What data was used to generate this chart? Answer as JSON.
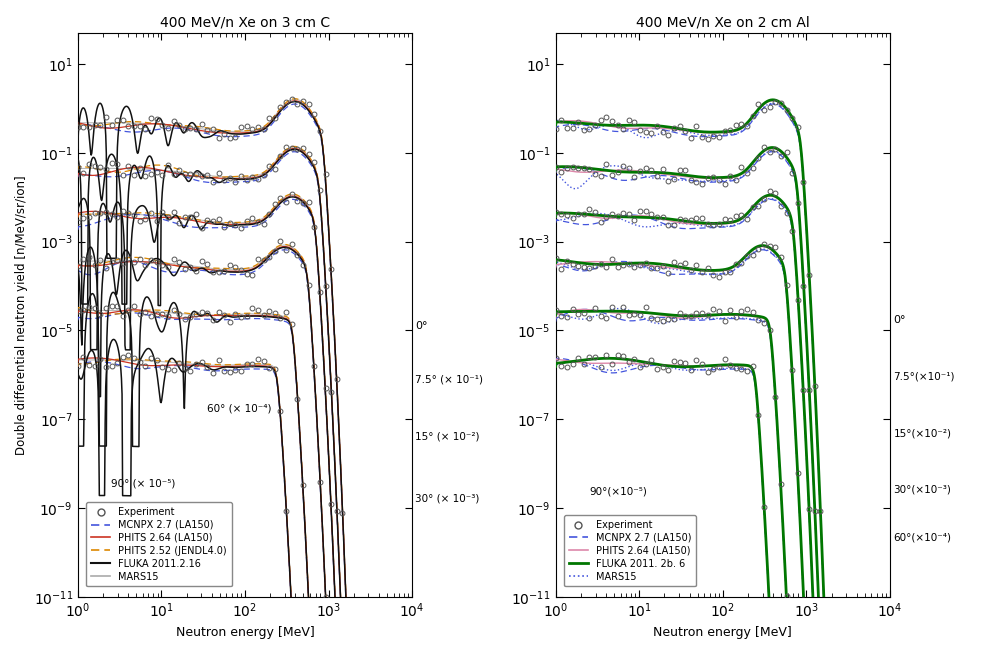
{
  "left_title": "400 MeV/n Xe on 3 cm C",
  "right_title": "400 MeV/n Xe on 2 cm Al",
  "ylabel": "Double differential neutron yield [n/MeV/sr/ion]",
  "xlabel": "Neutron energy [MeV]",
  "ylim": [
    1e-11,
    50.0
  ],
  "xlim": [
    1.0,
    10000.0
  ],
  "colors": {
    "experiment": "#888888",
    "mcnpx": "#4455dd",
    "phits_la150_left": "#cc3322",
    "phits_la150_right": "#dd88aa",
    "phits_jendl": "#dd8800",
    "fluka_left": "#111111",
    "fluka_right": "#007700",
    "mars_left": "#aaaaaa",
    "mars_right": "#4455dd"
  },
  "left_legend": [
    "Experiment",
    "MCNPX 2.7 (LA150)",
    "PHITS 2.64 (LA150)",
    "PHITS 2.52 (JENDL4.0)",
    "FLUKA 2011.2.16",
    "MARS15"
  ],
  "right_legend": [
    "Experiment",
    "MCNPX 2.7 (LA150)",
    "PHITS 2.64 (LA150)",
    "FLUKA 2011. 2b. 6",
    "MARS15"
  ],
  "angles": [
    0,
    7.5,
    15,
    30,
    60,
    90
  ],
  "scales": [
    1.0,
    0.1,
    0.01,
    0.001,
    0.0001,
    1e-05
  ],
  "left_angle_labels": [
    "0°",
    "7.5° (× 10⁻¹)",
    "15° (× 10⁻²)",
    "30° (× 10⁻³)",
    "60° (× 10⁻⁴)",
    "90° (× 10⁻⁵)"
  ],
  "right_angle_labels": [
    "0°",
    "7.5°(×10⁻¹)",
    "15°(×10⁻²)",
    "30°(×10⁻³)",
    "60°(×10⁻⁴)",
    "90°(×10⁻⁵)"
  ]
}
